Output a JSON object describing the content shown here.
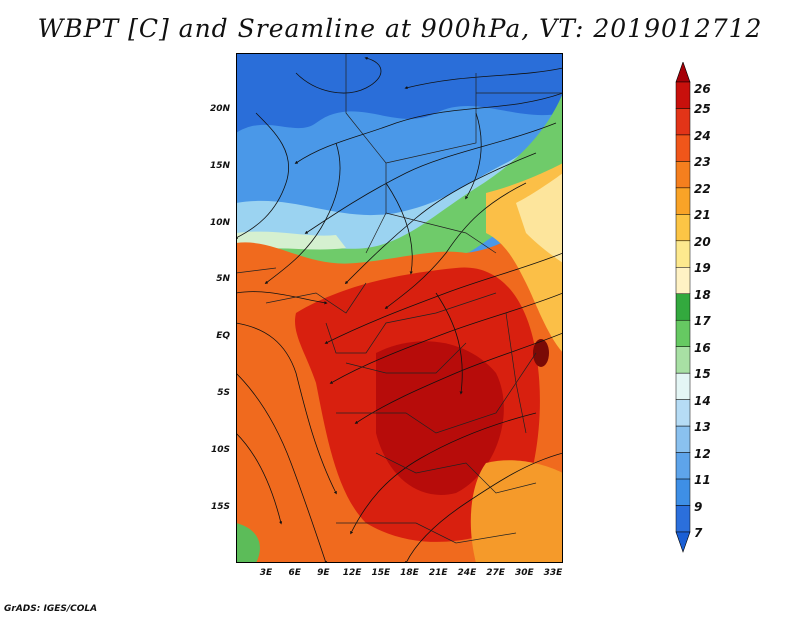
{
  "title": "WBPT [C] and Sreamline at 900hPa, VT: 2019012712",
  "credit": "GrADS: IGES/COLA",
  "map": {
    "lat_labels": [
      "20N",
      "15N",
      "10N",
      "5N",
      "EQ",
      "5S",
      "10S",
      "15S"
    ],
    "lon_labels": [
      "3E",
      "6E",
      "9E",
      "12E",
      "15E",
      "18E",
      "21E",
      "24E",
      "27E",
      "30E",
      "33E"
    ],
    "field": "wet-bulb potential temperature",
    "overlay": "streamlines"
  },
  "colorbar": {
    "labels": [
      "26",
      "25",
      "24",
      "23",
      "22",
      "21",
      "20",
      "19",
      "18",
      "17",
      "16",
      "15",
      "14",
      "13",
      "12",
      "11",
      "9",
      "7"
    ],
    "colors": [
      "#a50008",
      "#c8100c",
      "#e23418",
      "#f0561a",
      "#f57f1e",
      "#f9a327",
      "#fcc545",
      "#fde98e",
      "#fff2c4",
      "#33a93e",
      "#66c962",
      "#a8e0a4",
      "#e4f6f5",
      "#b6dcf5",
      "#8ac1ef",
      "#5ea4ea",
      "#3e8fe6",
      "#2b6fdc",
      "#1a5fd5"
    ],
    "colors_note": ""
  }
}
